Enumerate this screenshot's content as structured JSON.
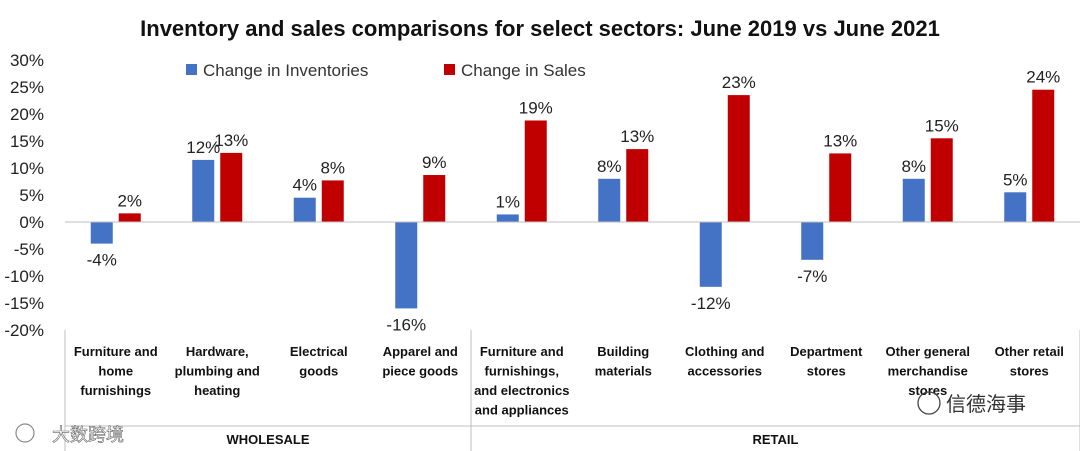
{
  "chart_data": {
    "type": "bar",
    "title": "Inventory and sales comparisons for select sectors: June 2019 vs June 2021",
    "xlabel": "",
    "ylabel": "",
    "ylim": [
      -0.2,
      0.3
    ],
    "yticks": [
      "30%",
      "25%",
      "20%",
      "15%",
      "10%",
      "5%",
      "0%",
      "-5%",
      "-10%",
      "-15%",
      "-20%"
    ],
    "ytick_values": [
      0.3,
      0.25,
      0.2,
      0.15,
      0.1,
      0.05,
      0,
      -0.05,
      -0.1,
      -0.15,
      -0.2
    ],
    "categories": [
      [
        "Furniture and",
        "home",
        "furnishings"
      ],
      [
        "Hardware,",
        "plumbing and",
        "heating"
      ],
      [
        "Electrical",
        "goods"
      ],
      [
        "Apparel and",
        "piece goods"
      ],
      [
        "Furniture and",
        "furnishings,",
        "and electronics",
        "and appliances"
      ],
      [
        "Building",
        "materials"
      ],
      [
        "Clothing and",
        "accessories"
      ],
      [
        "Department",
        "stores"
      ],
      [
        "Other general",
        "merchandise",
        "stores"
      ],
      [
        "Other retail",
        "stores"
      ]
    ],
    "series": [
      {
        "name": "Change in Inventories",
        "color": "#4472C4",
        "values": [
          -0.04,
          0.115,
          0.045,
          -0.16,
          0.014,
          0.08,
          -0.12,
          -0.07,
          0.08,
          0.055
        ],
        "labels": [
          "-4%",
          "12%",
          "4%",
          "-16%",
          "1%",
          "8%",
          "-12%",
          "-7%",
          "8%",
          "5%"
        ]
      },
      {
        "name": "Change in Sales",
        "color": "#C00000",
        "values": [
          0.016,
          0.128,
          0.077,
          0.087,
          0.188,
          0.135,
          0.235,
          0.127,
          0.155,
          0.245
        ],
        "labels": [
          "2%",
          "13%",
          "8%",
          "9%",
          "19%",
          "13%",
          "23%",
          "13%",
          "15%",
          "24%"
        ]
      }
    ],
    "groups": [
      {
        "label": "WHOLESALE",
        "count": 4
      },
      {
        "label": "RETAIL",
        "count": 6
      }
    ],
    "legend_position": "top-left",
    "grid": false
  },
  "watermarks": {
    "left": "大数跨境",
    "right": "信德海事"
  }
}
